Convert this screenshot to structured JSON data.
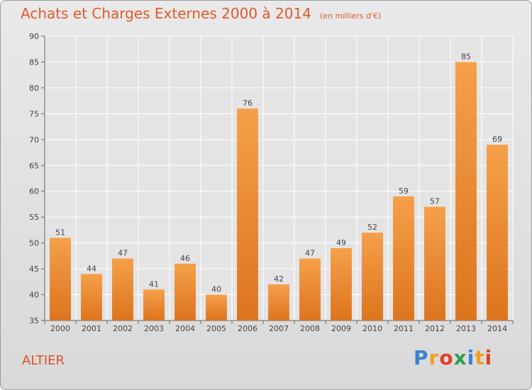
{
  "header": {
    "title": "Achats et Charges Externes 2000 à 2014",
    "unit": "(en milliers d'€)"
  },
  "footer": {
    "commune": "ALTIER",
    "brand": {
      "letters": [
        "P",
        "r",
        "o",
        "x",
        "i",
        "t",
        "i"
      ],
      "colors": [
        "#3a7fd0",
        "#f0a020",
        "#e0402a",
        "#2aa04a",
        "#3a7fd0",
        "#f0a020",
        "#e0402a"
      ]
    }
  },
  "chart_data": {
    "type": "bar",
    "title": "Achats et Charges Externes 2000 à 2014",
    "categories": [
      "2000",
      "2001",
      "2002",
      "2003",
      "2004",
      "2005",
      "2006",
      "2007",
      "2008",
      "2009",
      "2010",
      "2011",
      "2012",
      "2013",
      "2014"
    ],
    "values": [
      51,
      44,
      47,
      41,
      46,
      40,
      76,
      42,
      47,
      49,
      52,
      59,
      57,
      85,
      69
    ],
    "ylim": [
      35,
      90
    ],
    "yticks": [
      35,
      40,
      45,
      50,
      55,
      60,
      65,
      70,
      75,
      80,
      85,
      90
    ],
    "grid": true,
    "bar_color_top": "#f5a04a",
    "bar_color_bottom": "#dd741f"
  }
}
